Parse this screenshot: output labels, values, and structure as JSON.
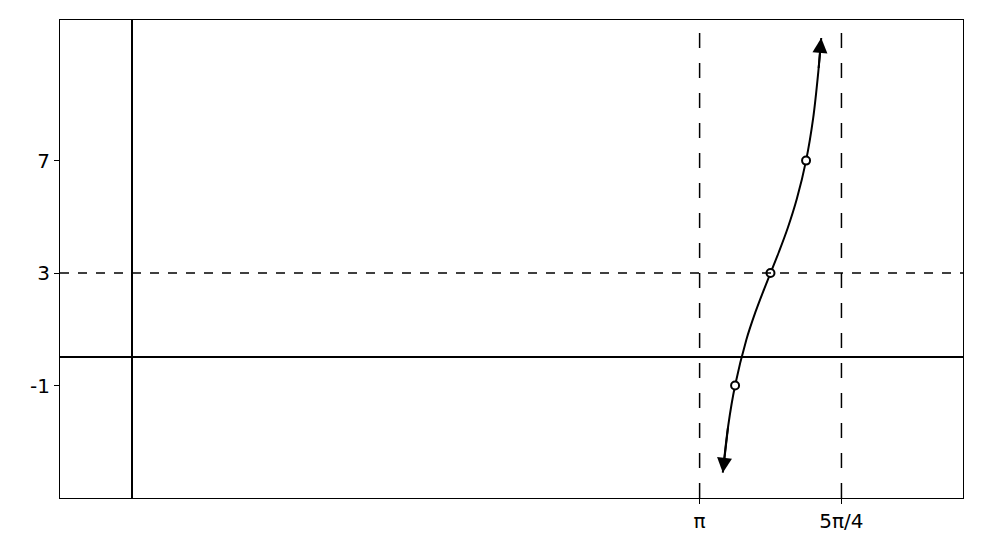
{
  "chart_data": {
    "type": "line",
    "x": [
      3.27,
      3.3,
      3.338,
      3.4,
      3.45,
      3.5,
      3.534,
      3.58,
      3.63,
      3.68,
      3.731,
      3.77,
      3.8,
      3.815
    ],
    "values": [
      -4.1,
      -2.43,
      -1,
      0.62,
      1.6,
      2.45,
      3,
      3.74,
      4.61,
      5.64,
      7,
      8.49,
      10.24,
      11.36
    ],
    "color": "#000000",
    "line_style": "solid",
    "marker": "circle",
    "points": {
      "x": [
        3.338,
        3.534,
        3.731
      ],
      "y": [
        -1,
        3,
        7
      ]
    },
    "asymptotes": {
      "x": [
        3.14159,
        3.92699
      ],
      "y": [
        3
      ]
    },
    "xlim": [
      -0.4,
      4.6
    ],
    "ylim": [
      -5,
      12
    ],
    "xticks": [
      {
        "value": 3.14159,
        "label": "π"
      },
      {
        "value": 3.92699,
        "label": "5π/4"
      }
    ],
    "yticks": [
      -1,
      3,
      7
    ],
    "grid": false
  }
}
